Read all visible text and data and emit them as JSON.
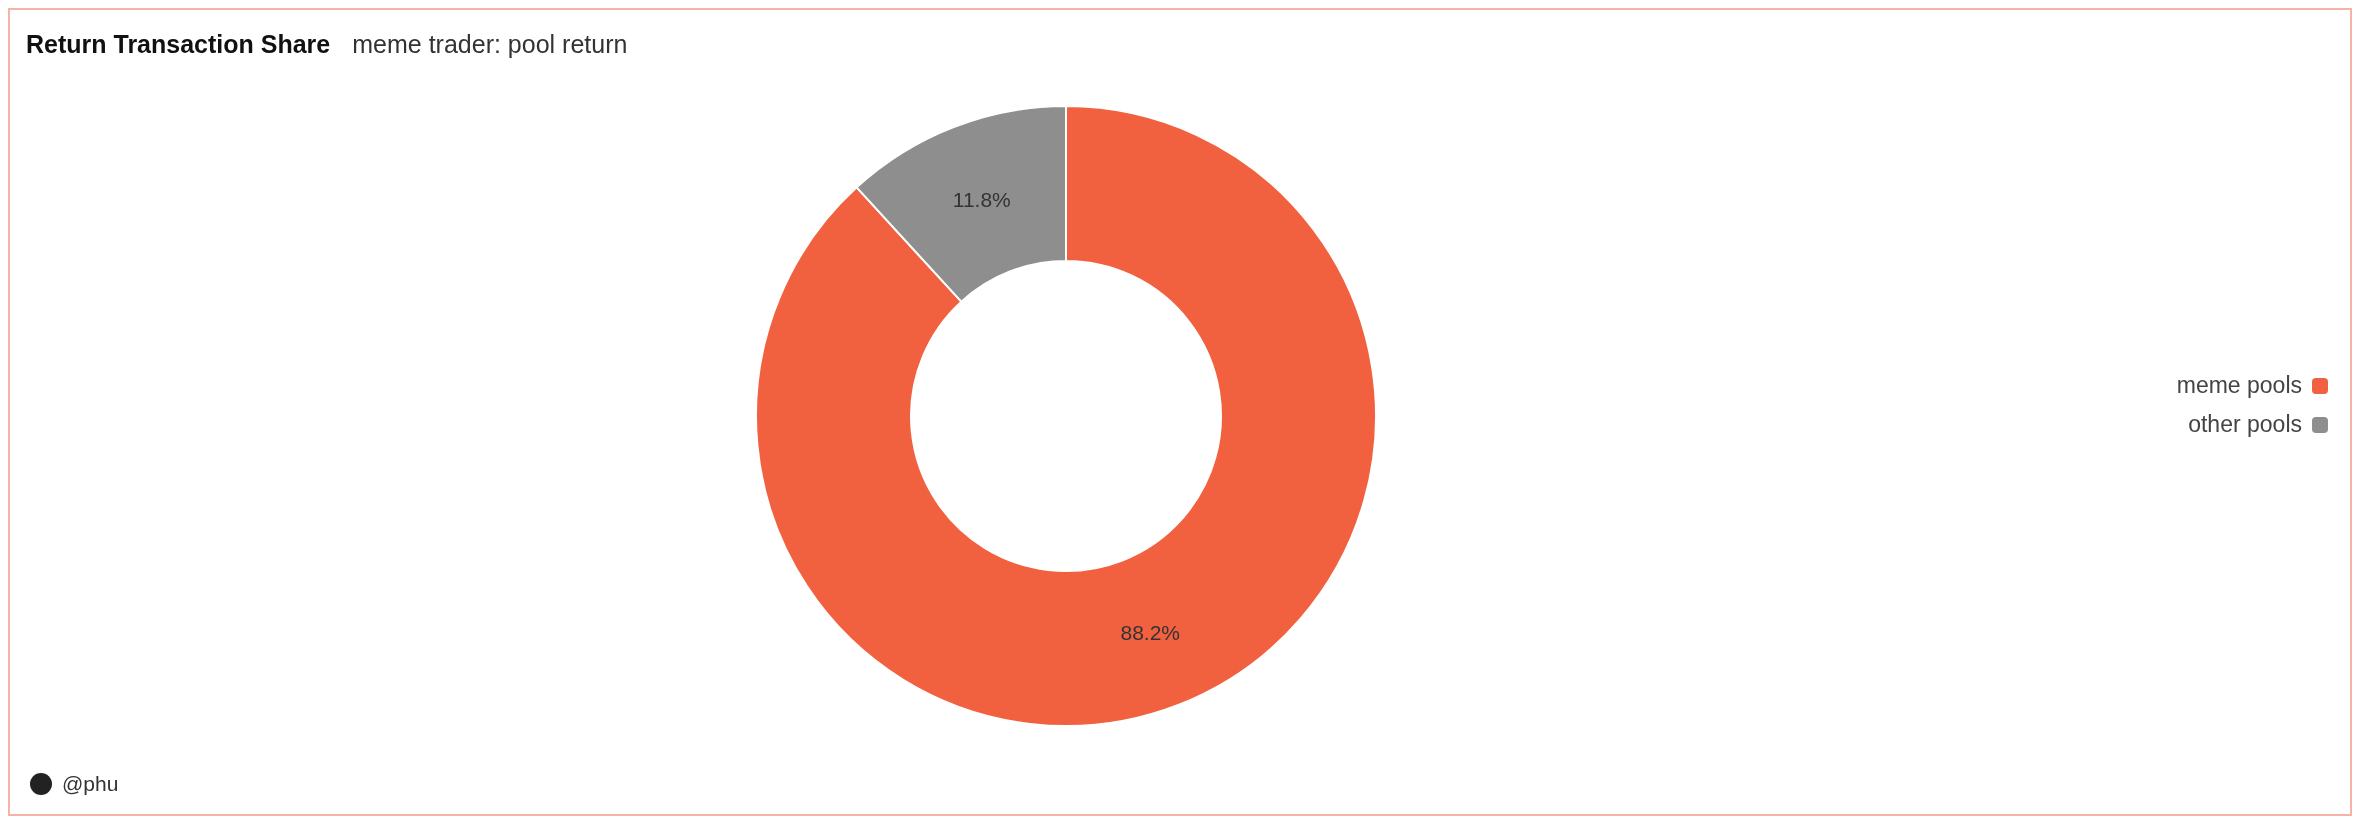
{
  "chart_data": {
    "type": "donut",
    "title": "Return Transaction Share",
    "subtitle": "meme trader: pool return",
    "categories": [
      "meme pools",
      "other pools"
    ],
    "values": [
      88.2,
      11.8
    ],
    "colors": [
      "#f2613f",
      "#8e8e8e"
    ],
    "value_labels": [
      "88.2%",
      "11.8%"
    ],
    "legend": "right",
    "annotations": [
      "@phu"
    ]
  }
}
